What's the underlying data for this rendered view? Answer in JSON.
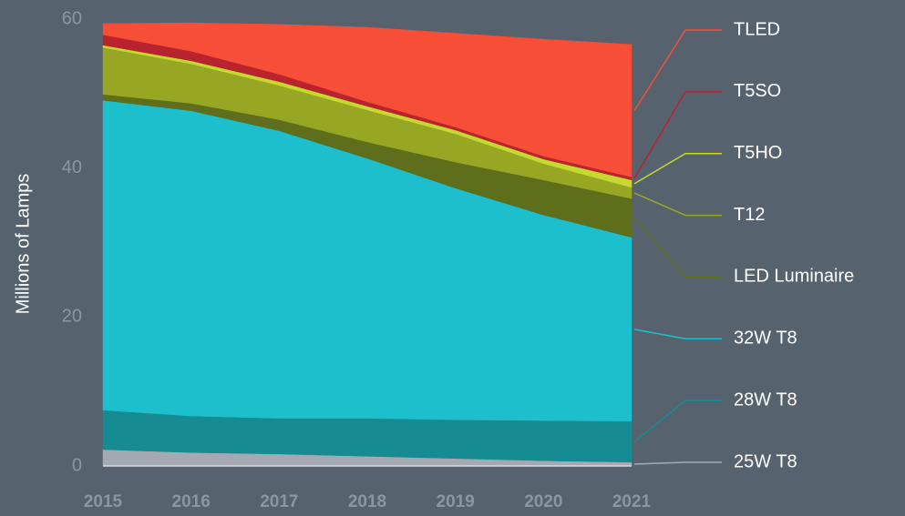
{
  "chart_data": {
    "type": "stacked_area",
    "y_label": "Millions of Lamps",
    "categories": [
      "2015",
      "2016",
      "2017",
      "2018",
      "2019",
      "2020",
      "2021"
    ],
    "series": [
      {
        "name": "25W T8",
        "color": "#a5aab2",
        "values": [
          2.2,
          1.8,
          1.6,
          1.3,
          1.0,
          0.7,
          0.5
        ]
      },
      {
        "name": "28W T8",
        "color": "#168b92",
        "values": [
          5.3,
          4.9,
          4.8,
          5.1,
          5.2,
          5.4,
          5.5
        ]
      },
      {
        "name": "32W T8",
        "color": "#1cbfcb",
        "values": [
          41.6,
          41.0,
          38.6,
          34.9,
          31.1,
          27.6,
          24.7
        ]
      },
      {
        "name": "LED Luminaire",
        "color": "#5f6e1a",
        "values": [
          0.8,
          1.0,
          1.5,
          2.2,
          3.5,
          4.7,
          5.2
        ]
      },
      {
        "name": "T12",
        "color": "#98a723",
        "values": [
          6.3,
          5.3,
          4.6,
          4.3,
          3.8,
          2.2,
          1.5
        ]
      },
      {
        "name": "T5HO",
        "color": "#c6d930",
        "values": [
          0.3,
          0.4,
          0.5,
          0.5,
          0.5,
          0.6,
          1.0
        ]
      },
      {
        "name": "T5SO",
        "color": "#b8232e",
        "values": [
          1.4,
          1.3,
          1.0,
          0.6,
          0.4,
          0.4,
          0.4
        ]
      },
      {
        "name": "TLED",
        "color": "#f64e37",
        "values": [
          1.5,
          3.8,
          6.7,
          10.0,
          12.6,
          15.7,
          17.8
        ]
      }
    ],
    "ylim": [
      0,
      60
    ],
    "yticks": [
      0,
      20,
      40,
      60
    ],
    "legend": "right"
  }
}
